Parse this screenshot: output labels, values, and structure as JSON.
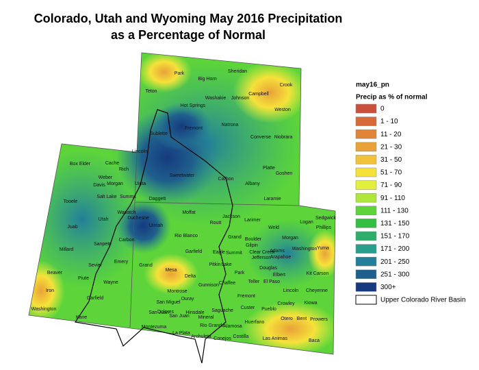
{
  "title": [
    "Colorado, Utah and Wyoming May 2016 Precipitation",
    "as a Percentage of Normal"
  ],
  "legend": {
    "title": "may16_pn",
    "subtitle": "Precip as % of normal",
    "items": [
      {
        "label": "0",
        "color": "#c9503a"
      },
      {
        "label": "1 - 10",
        "color": "#d86a38"
      },
      {
        "label": "11 - 20",
        "color": "#e08538"
      },
      {
        "label": "21 - 30",
        "color": "#e9a238"
      },
      {
        "label": "31 - 50",
        "color": "#f1c23a"
      },
      {
        "label": "51 - 70",
        "color": "#f6e13a"
      },
      {
        "label": "71 - 90",
        "color": "#e2ef3c"
      },
      {
        "label": "91 - 110",
        "color": "#aee63c"
      },
      {
        "label": "111 - 130",
        "color": "#5cd43a"
      },
      {
        "label": "131 - 150",
        "color": "#33bf42"
      },
      {
        "label": "151 - 170",
        "color": "#2eae6a"
      },
      {
        "label": "171 - 200",
        "color": "#289f8c"
      },
      {
        "label": "201 - 250",
        "color": "#247f9a"
      },
      {
        "label": "251 - 300",
        "color": "#1f5f8c"
      },
      {
        "label": "300+",
        "color": "#163a80"
      }
    ],
    "basin": "Upper Colorado River Basin"
  },
  "counties": [
    "Park",
    "Sheridan",
    "Big Horn",
    "Crook",
    "Campbell",
    "Teton",
    "Washakie",
    "Johnson",
    "Hot Springs",
    "Weston",
    "Fremont",
    "Natrona",
    "Converse",
    "Niobrara",
    "Sublette",
    "Lincoln",
    "Sweetwater",
    "Platte",
    "Goshen",
    "Carbon",
    "Albany",
    "Uinta",
    "Laramie",
    "Box Elder",
    "Cache",
    "Rich",
    "Weber",
    "Morgan",
    "Davis",
    "Salt Lake",
    "Summit",
    "Daggett",
    "Tooele",
    "Wasatch",
    "Duchesne",
    "Utah",
    "Uintah",
    "Juab",
    "Sanpete",
    "Carbon",
    "Millard",
    "Sevier",
    "Emery",
    "Grand",
    "Piute",
    "Wayne",
    "Beaver",
    "Iron",
    "Garfield",
    "Washington",
    "Kane",
    "San Juan",
    "Moffat",
    "Jackson",
    "Larimer",
    "Logan",
    "Sedgwick",
    "Phillips",
    "Routt",
    "Weld",
    "Grand",
    "Boulder",
    "Morgan",
    "Rio Blanco",
    "Eagle",
    "Gilpin",
    "Summit",
    "Clear Creek",
    "Jefferson",
    "Adams",
    "Washington",
    "Yuma",
    "Arapahoe",
    "Garfield",
    "Pitkin",
    "Lake",
    "Park",
    "Douglas",
    "Elbert",
    "Kit Carson",
    "Mesa",
    "Delta",
    "Chaffee",
    "Teller",
    "El Paso",
    "Lincoln",
    "Cheyenne",
    "Gunnison",
    "Montrose",
    "Fremont",
    "Ouray",
    "San Miguel",
    "Crowley",
    "Kiowa",
    "Hinsdale",
    "Dolores",
    "San Juan",
    "Saguache",
    "Custer",
    "Pueblo",
    "Otero",
    "Bent",
    "Prowers",
    "Mineral",
    "Rio Grande",
    "Alamosa",
    "Huerfano",
    "Montezuma",
    "La Plata",
    "Archuleta",
    "Conejos",
    "Costilla",
    "Las Animas",
    "Baca"
  ]
}
